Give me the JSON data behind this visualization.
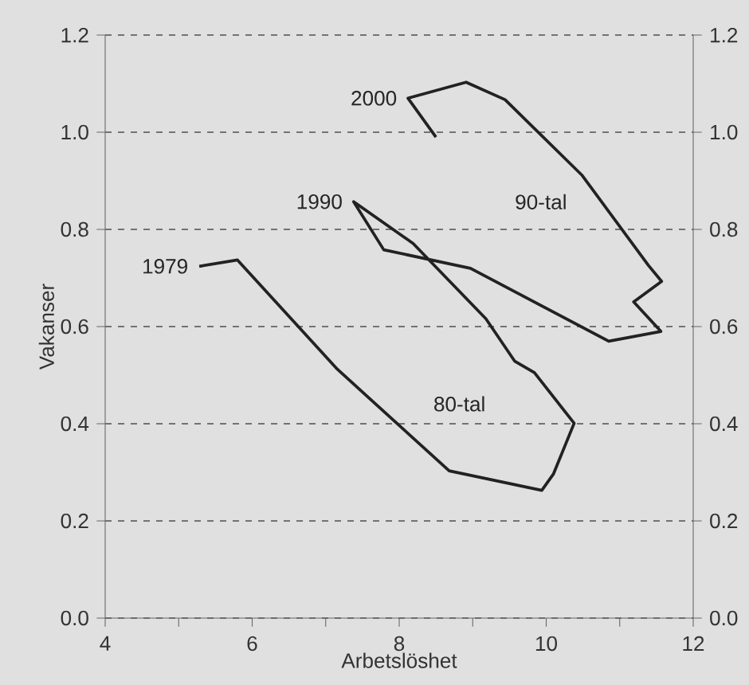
{
  "chart_data": {
    "type": "line",
    "xlabel": "Arbetslöshet",
    "ylabel": "Vakanser",
    "series": [
      {
        "color": "#222222",
        "x": [
          5.28,
          5.8,
          7.16,
          8.68,
          9.94,
          10.1,
          10.38,
          9.84,
          9.57,
          9.18,
          8.19,
          7.38,
          7.79,
          8.97,
          10.85,
          11.56,
          11.19,
          11.57,
          11.39,
          10.49,
          9.44,
          8.91,
          8.12,
          8.5
        ],
        "values": [
          0.724,
          0.737,
          0.512,
          0.303,
          0.263,
          0.297,
          0.401,
          0.505,
          0.529,
          0.616,
          0.771,
          0.857,
          0.758,
          0.72,
          0.57,
          0.59,
          0.651,
          0.693,
          0.726,
          0.911,
          1.067,
          1.103,
          1.07,
          0.99
        ]
      }
    ],
    "xlim": [
      4,
      12
    ],
    "xticks": [
      4,
      {
        "value": 5,
        "label": null
      },
      6,
      {
        "value": 7,
        "label": null
      },
      8,
      {
        "value": 9,
        "label": null
      },
      10,
      {
        "value": 11,
        "label": null
      },
      12
    ],
    "ylim": [
      0,
      1.2
    ],
    "yticks": [
      {
        "value": 0,
        "label": "0.0"
      },
      0.2,
      0.4,
      0.6,
      0.8,
      {
        "value": 1,
        "label": "1.0"
      },
      1.2
    ],
    "y2lim": [
      0,
      1.2
    ],
    "y2ticks": [
      {
        "value": 0,
        "label": "0.0"
      },
      0.2,
      0.4,
      0.6,
      0.8,
      {
        "value": 1,
        "label": "1.0"
      },
      1.2
    ],
    "grid": "y",
    "marker": "none",
    "line_style": "solid",
    "annotations": [
      {
        "text": "1979",
        "x": 5.28,
        "y": 0.724
      },
      {
        "text": "1990",
        "x": 7.38,
        "y": 0.857
      },
      {
        "text": "2000",
        "x": 8.12,
        "y": 1.07
      },
      "80-tal",
      "90-tal"
    ]
  }
}
